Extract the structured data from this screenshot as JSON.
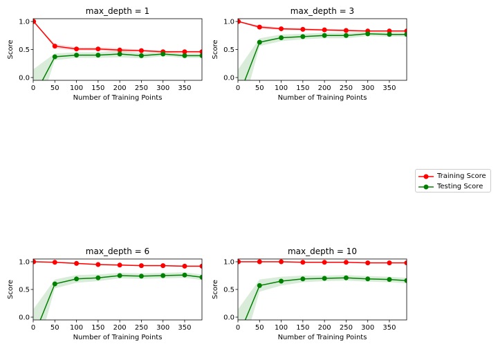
{
  "legend": {
    "entries": [
      {
        "label": "Training Score",
        "color": "#ff0000"
      },
      {
        "label": "Testing Score",
        "color": "#008000"
      }
    ]
  },
  "chart_data": [
    {
      "type": "line",
      "title": "max_depth = 1",
      "xlabel": "Number of Training Points",
      "ylabel": "Score",
      "xlim": [
        0,
        390
      ],
      "ylim": [
        -0.05,
        1.05
      ],
      "xticks": [
        0,
        50,
        100,
        150,
        200,
        250,
        300,
        350
      ],
      "yticks": [
        0.0,
        0.5,
        1.0
      ],
      "x": [
        1,
        50,
        100,
        150,
        200,
        250,
        300,
        350,
        390
      ],
      "series": [
        {
          "name": "Training Score",
          "color": "#ff0000",
          "values": [
            1.0,
            0.56,
            0.51,
            0.51,
            0.49,
            0.48,
            0.46,
            0.46,
            0.46
          ],
          "std": [
            0.0,
            0.04,
            0.03,
            0.03,
            0.03,
            0.02,
            0.02,
            0.02,
            0.02
          ]
        },
        {
          "name": "Testing Score",
          "color": "#008000",
          "values": [
            -0.35,
            0.37,
            0.4,
            0.4,
            0.42,
            0.39,
            0.42,
            0.39,
            0.39
          ],
          "std": [
            0.5,
            0.06,
            0.05,
            0.05,
            0.06,
            0.05,
            0.04,
            0.04,
            0.04
          ]
        }
      ]
    },
    {
      "type": "line",
      "title": "max_depth = 3",
      "xlabel": "Number of Training Points",
      "ylabel": "Score",
      "xlim": [
        0,
        390
      ],
      "ylim": [
        -0.05,
        1.05
      ],
      "xticks": [
        0,
        50,
        100,
        150,
        200,
        250,
        300,
        350
      ],
      "yticks": [
        0.0,
        0.5,
        1.0
      ],
      "x": [
        1,
        50,
        100,
        150,
        200,
        250,
        300,
        350,
        390
      ],
      "series": [
        {
          "name": "Training Score",
          "color": "#ff0000",
          "values": [
            1.0,
            0.9,
            0.87,
            0.86,
            0.85,
            0.84,
            0.83,
            0.83,
            0.83
          ],
          "std": [
            0.0,
            0.03,
            0.02,
            0.02,
            0.02,
            0.02,
            0.01,
            0.01,
            0.01
          ]
        },
        {
          "name": "Testing Score",
          "color": "#008000",
          "values": [
            -0.35,
            0.63,
            0.71,
            0.73,
            0.75,
            0.75,
            0.78,
            0.77,
            0.77
          ],
          "std": [
            0.5,
            0.07,
            0.06,
            0.05,
            0.05,
            0.05,
            0.04,
            0.04,
            0.04
          ]
        }
      ]
    },
    {
      "type": "line",
      "title": "max_depth = 6",
      "xlabel": "Number of Training Points",
      "ylabel": "Score",
      "xlim": [
        0,
        390
      ],
      "ylim": [
        -0.05,
        1.05
      ],
      "xticks": [
        0,
        50,
        100,
        150,
        200,
        250,
        300,
        350
      ],
      "yticks": [
        0.0,
        0.5,
        1.0
      ],
      "x": [
        1,
        50,
        100,
        150,
        200,
        250,
        300,
        350,
        390
      ],
      "series": [
        {
          "name": "Training Score",
          "color": "#ff0000",
          "values": [
            1.0,
            0.99,
            0.97,
            0.95,
            0.94,
            0.93,
            0.93,
            0.92,
            0.92
          ],
          "std": [
            0.0,
            0.01,
            0.01,
            0.01,
            0.01,
            0.01,
            0.01,
            0.01,
            0.01
          ]
        },
        {
          "name": "Testing Score",
          "color": "#008000",
          "values": [
            -0.35,
            0.6,
            0.69,
            0.71,
            0.75,
            0.74,
            0.75,
            0.76,
            0.72
          ],
          "std": [
            0.5,
            0.08,
            0.07,
            0.06,
            0.05,
            0.05,
            0.05,
            0.05,
            0.05
          ]
        }
      ]
    },
    {
      "type": "line",
      "title": "max_depth = 10",
      "xlabel": "Number of Training Points",
      "ylabel": "Score",
      "xlim": [
        0,
        390
      ],
      "ylim": [
        -0.05,
        1.05
      ],
      "xticks": [
        0,
        50,
        100,
        150,
        200,
        250,
        300,
        350
      ],
      "yticks": [
        0.0,
        0.5,
        1.0
      ],
      "x": [
        1,
        50,
        100,
        150,
        200,
        250,
        300,
        350,
        390
      ],
      "series": [
        {
          "name": "Training Score",
          "color": "#ff0000",
          "values": [
            1.0,
            1.0,
            1.0,
            0.99,
            0.99,
            0.99,
            0.98,
            0.98,
            0.98
          ],
          "std": [
            0.0,
            0.0,
            0.0,
            0.0,
            0.0,
            0.0,
            0.0,
            0.0,
            0.0
          ]
        },
        {
          "name": "Testing Score",
          "color": "#008000",
          "values": [
            -0.35,
            0.57,
            0.65,
            0.69,
            0.7,
            0.71,
            0.69,
            0.68,
            0.66
          ],
          "std": [
            0.5,
            0.11,
            0.08,
            0.06,
            0.05,
            0.05,
            0.05,
            0.05,
            0.05
          ]
        }
      ]
    }
  ]
}
